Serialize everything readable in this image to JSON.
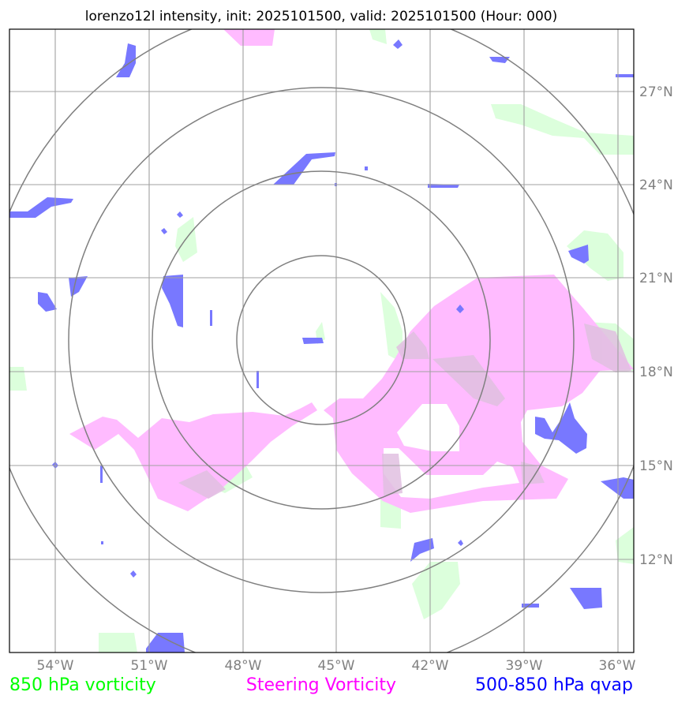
{
  "title": "lorenzo12l intensity, init: 2025101500, valid: 2025101500 (Hour: 000)",
  "map": {
    "longitude_ticks": [
      "54°W",
      "51°W",
      "48°W",
      "45°W",
      "42°W",
      "39°W",
      "36°W"
    ],
    "latitude_ticks": [
      "27°N",
      "24°N",
      "21°N",
      "18°N",
      "15°N",
      "12°N"
    ],
    "extent": {
      "lon_min": -55.5,
      "lon_max": -35.5,
      "lat_min": 9.0,
      "lat_max": 28.9
    },
    "storm_center": {
      "lon": -45.5,
      "lat": 19.0
    },
    "range_rings_deg": [
      2.7,
      5.4,
      8.1,
      10.8
    ]
  },
  "legend": [
    {
      "label": "850 hPa vorticity",
      "color": "#00ff00"
    },
    {
      "label": "Steering Vorticity",
      "color": "#ff00ff"
    },
    {
      "label": "500-850 hPa qvap",
      "color": "#0000ff"
    }
  ],
  "colors": {
    "vorticity_850_fill": "#dcffdc",
    "steering_vorticity_fill": "#ffbbff",
    "qvap_fill": "#7878ff",
    "gridline": "#a0a0a0",
    "range_ring": "#808080"
  }
}
